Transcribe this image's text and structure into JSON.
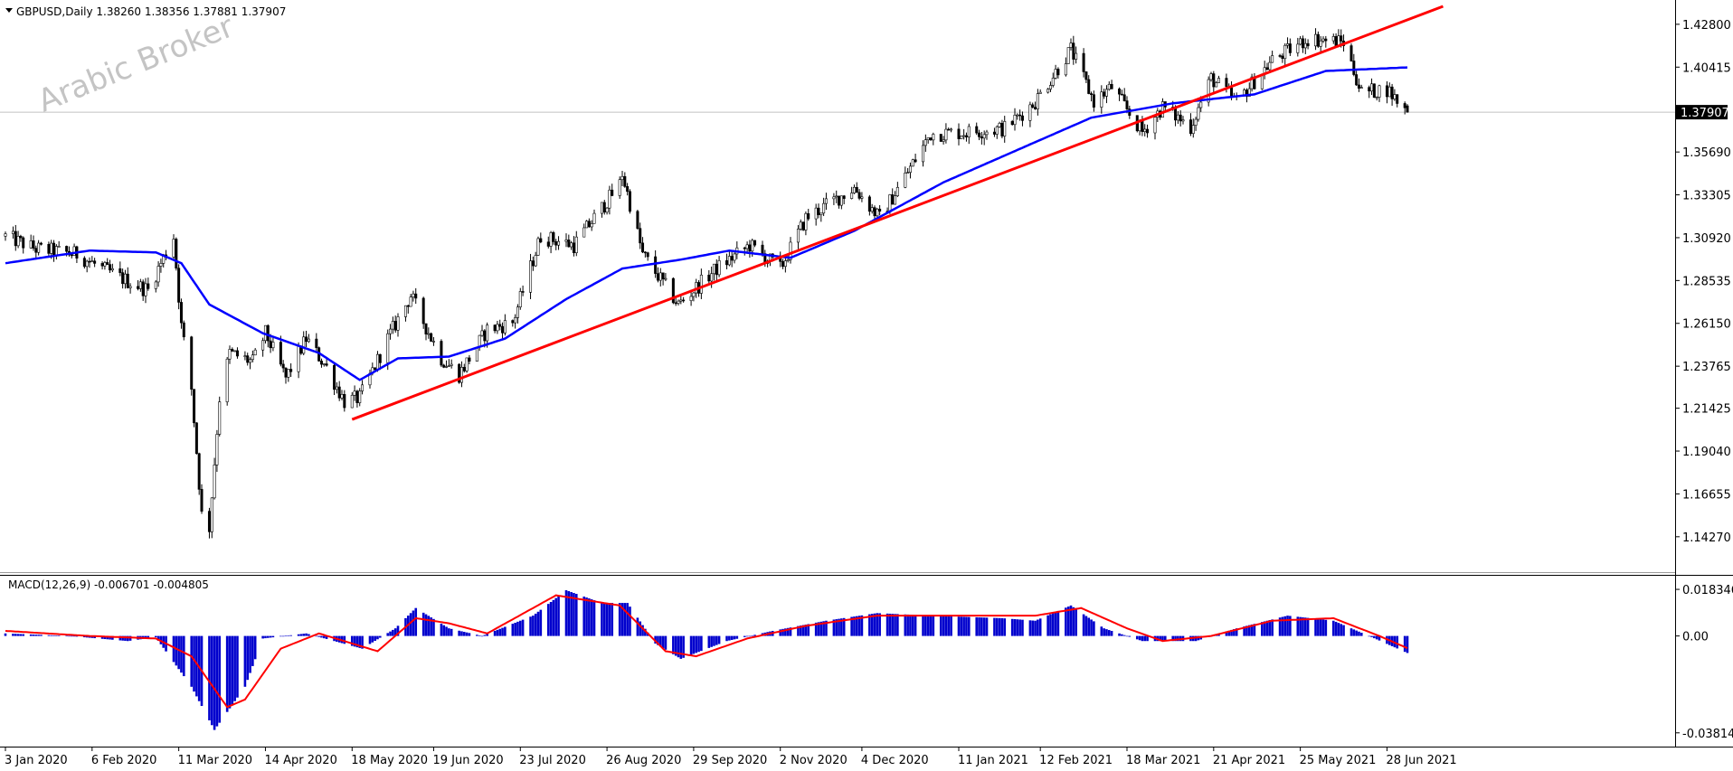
{
  "window": {
    "symbol": "GBPUSD",
    "timeframe": "Daily",
    "header_text": "GBPUSD,Daily  1.38260 1.38356 1.37881 1.37907",
    "watermark": "Arabic Broker"
  },
  "colors": {
    "background": "#ffffff",
    "candle": "#000000",
    "ma_line": "#0000ff",
    "trendline": "#ff0000",
    "macd_hist": "#0000cd",
    "macd_signal": "#ff0000",
    "bid_line": "#c0c0c0",
    "price_tag_bg": "#000000",
    "price_tag_text": "#ffffff"
  },
  "chart_data": [
    {
      "type": "candlestick",
      "title": "GBPUSD,Daily",
      "ohlc_last": {
        "open": 1.3826,
        "high": 1.38356,
        "low": 1.37881,
        "close": 1.37907
      },
      "current_price_label": "1.37907",
      "ylim": [
        1.125,
        1.438
      ],
      "y_ticks": [
        "1.42800",
        "1.40415",
        "1.37907",
        "1.35690",
        "1.33305",
        "1.30920",
        "1.28535",
        "1.26150",
        "1.23765",
        "1.21425",
        "1.19040",
        "1.16655",
        "1.14270"
      ],
      "x_ticks": [
        "3 Jan 2020",
        "6 Feb 2020",
        "11 Mar 2020",
        "14 Apr 2020",
        "18 May 2020",
        "19 Jun 2020",
        "23 Jul 2020",
        "26 Aug 2020",
        "29 Sep 2020",
        "2 Nov 2020",
        "4 Dec 2020",
        "11 Jan 2021",
        "12 Feb 2021",
        "18 Mar 2021",
        "21 Apr 2021",
        "25 May 2021",
        "28 Jun 2021"
      ],
      "price_anchors": [
        [
          "2020-01-03",
          1.31
        ],
        [
          "2020-01-15",
          1.303
        ],
        [
          "2020-01-31",
          1.3
        ],
        [
          "2020-02-10",
          1.292
        ],
        [
          "2020-02-20",
          1.285
        ],
        [
          "2020-02-28",
          1.28
        ],
        [
          "2020-03-09",
          1.31
        ],
        [
          "2020-03-12",
          1.26
        ],
        [
          "2020-03-16",
          1.225
        ],
        [
          "2020-03-20",
          1.155
        ],
        [
          "2020-03-23",
          1.148
        ],
        [
          "2020-03-27",
          1.22
        ],
        [
          "2020-03-31",
          1.245
        ],
        [
          "2020-04-09",
          1.24
        ],
        [
          "2020-04-14",
          1.256
        ],
        [
          "2020-04-22",
          1.231
        ],
        [
          "2020-04-30",
          1.253
        ],
        [
          "2020-05-08",
          1.237
        ],
        [
          "2020-05-15",
          1.218
        ],
        [
          "2020-05-21",
          1.22
        ],
        [
          "2020-06-01",
          1.253
        ],
        [
          "2020-06-10",
          1.277
        ],
        [
          "2020-06-22",
          1.242
        ],
        [
          "2020-06-29",
          1.233
        ],
        [
          "2020-07-10",
          1.258
        ],
        [
          "2020-07-20",
          1.262
        ],
        [
          "2020-07-31",
          1.31
        ],
        [
          "2020-08-13",
          1.305
        ],
        [
          "2020-08-31",
          1.339
        ],
        [
          "2020-09-01",
          1.345
        ],
        [
          "2020-09-09",
          1.3
        ],
        [
          "2020-09-23",
          1.272
        ],
        [
          "2020-10-08",
          1.292
        ],
        [
          "2020-10-21",
          1.305
        ],
        [
          "2020-11-02",
          1.292
        ],
        [
          "2020-11-12",
          1.32
        ],
        [
          "2020-12-01",
          1.337
        ],
        [
          "2020-12-11",
          1.32
        ],
        [
          "2020-12-31",
          1.367
        ],
        [
          "2021-01-15",
          1.368
        ],
        [
          "2021-01-29",
          1.37
        ],
        [
          "2021-02-10",
          1.385
        ],
        [
          "2021-02-24",
          1.414
        ],
        [
          "2021-03-05",
          1.385
        ],
        [
          "2021-03-12",
          1.393
        ],
        [
          "2021-03-24",
          1.368
        ],
        [
          "2021-04-01",
          1.382
        ],
        [
          "2021-04-12",
          1.371
        ],
        [
          "2021-04-20",
          1.398
        ],
        [
          "2021-04-30",
          1.385
        ],
        [
          "2021-05-14",
          1.408
        ],
        [
          "2021-05-28",
          1.42
        ],
        [
          "2021-06-11",
          1.418
        ],
        [
          "2021-06-18",
          1.39
        ],
        [
          "2021-06-28",
          1.392
        ],
        [
          "2021-07-06",
          1.379
        ]
      ],
      "ma_anchors": [
        [
          "2020-01-03",
          1.295
        ],
        [
          "2020-02-05",
          1.302
        ],
        [
          "2020-03-02",
          1.301
        ],
        [
          "2020-03-12",
          1.295
        ],
        [
          "2020-03-23",
          1.272
        ],
        [
          "2020-04-13",
          1.256
        ],
        [
          "2020-05-05",
          1.245
        ],
        [
          "2020-05-21",
          1.23
        ],
        [
          "2020-06-05",
          1.242
        ],
        [
          "2020-06-25",
          1.243
        ],
        [
          "2020-07-17",
          1.253
        ],
        [
          "2020-08-10",
          1.275
        ],
        [
          "2020-09-01",
          1.292
        ],
        [
          "2020-09-24",
          1.297
        ],
        [
          "2020-10-13",
          1.302
        ],
        [
          "2020-11-06",
          1.298
        ],
        [
          "2020-12-01",
          1.313
        ],
        [
          "2021-01-05",
          1.34
        ],
        [
          "2021-02-11",
          1.363
        ],
        [
          "2021-03-04",
          1.376
        ],
        [
          "2021-04-05",
          1.384
        ],
        [
          "2021-05-07",
          1.389
        ],
        [
          "2021-06-04",
          1.402
        ],
        [
          "2021-07-06",
          1.404
        ]
      ],
      "trendline": {
        "start": [
          "2020-05-18",
          1.208
        ],
        "end": [
          "2021-07-20",
          1.438
        ]
      },
      "grid": false
    },
    {
      "type": "bar",
      "title": "MACD(12,26,9) -0.006701 -0.004805",
      "series_names": [
        "MACD histogram",
        "Signal"
      ],
      "ylim": [
        -0.04,
        0.0205
      ],
      "y_ticks": [
        "0.018346",
        "0.00",
        "-0.038143"
      ],
      "macd_anchors": [
        [
          "2020-01-03",
          0.001
        ],
        [
          "2020-01-28",
          0.0
        ],
        [
          "2020-02-20",
          -0.002
        ],
        [
          "2020-03-02",
          -0.0005
        ],
        [
          "2020-03-16",
          -0.02
        ],
        [
          "2020-03-25",
          -0.037
        ],
        [
          "2020-04-06",
          -0.02
        ],
        [
          "2020-04-13",
          -0.001
        ],
        [
          "2020-04-30",
          0.001
        ],
        [
          "2020-05-22",
          -0.005
        ],
        [
          "2020-06-04",
          0.003
        ],
        [
          "2020-06-12",
          0.011
        ],
        [
          "2020-06-25",
          0.003
        ],
        [
          "2020-07-08",
          0.0
        ],
        [
          "2020-07-28",
          0.008
        ],
        [
          "2020-08-10",
          0.018
        ],
        [
          "2020-08-24",
          0.013
        ],
        [
          "2020-09-03",
          0.013
        ],
        [
          "2020-09-14",
          -0.003
        ],
        [
          "2020-09-24",
          -0.009
        ],
        [
          "2020-10-12",
          -0.002
        ],
        [
          "2020-10-30",
          0.002
        ],
        [
          "2020-11-20",
          0.006
        ],
        [
          "2020-12-10",
          0.009
        ],
        [
          "2020-12-31",
          0.008
        ],
        [
          "2021-01-28",
          0.007
        ],
        [
          "2021-02-10",
          0.006
        ],
        [
          "2021-02-24",
          0.012
        ],
        [
          "2021-03-09",
          0.003
        ],
        [
          "2021-03-24",
          -0.002
        ],
        [
          "2021-04-14",
          -0.002
        ],
        [
          "2021-04-30",
          0.003
        ],
        [
          "2021-05-20",
          0.008
        ],
        [
          "2021-06-07",
          0.006
        ],
        [
          "2021-06-21",
          0.0
        ],
        [
          "2021-07-06",
          -0.0067
        ]
      ],
      "signal_anchors": [
        [
          "2020-01-03",
          0.002
        ],
        [
          "2020-02-05",
          0.0
        ],
        [
          "2020-03-02",
          -0.001
        ],
        [
          "2020-03-16",
          -0.008
        ],
        [
          "2020-03-30",
          -0.028
        ],
        [
          "2020-04-06",
          -0.025
        ],
        [
          "2020-04-20",
          -0.005
        ],
        [
          "2020-05-05",
          0.001
        ],
        [
          "2020-05-28",
          -0.006
        ],
        [
          "2020-06-12",
          0.007
        ],
        [
          "2020-06-25",
          0.005
        ],
        [
          "2020-07-10",
          0.001
        ],
        [
          "2020-08-06",
          0.016
        ],
        [
          "2020-08-31",
          0.012
        ],
        [
          "2020-09-18",
          -0.006
        ],
        [
          "2020-09-30",
          -0.008
        ],
        [
          "2020-10-20",
          -0.001
        ],
        [
          "2020-11-12",
          0.004
        ],
        [
          "2020-12-10",
          0.008
        ],
        [
          "2021-01-15",
          0.008
        ],
        [
          "2021-02-10",
          0.008
        ],
        [
          "2021-02-28",
          0.011
        ],
        [
          "2021-03-18",
          0.003
        ],
        [
          "2021-04-01",
          -0.002
        ],
        [
          "2021-04-20",
          0.0
        ],
        [
          "2021-05-14",
          0.006
        ],
        [
          "2021-06-07",
          0.007
        ],
        [
          "2021-06-25",
          0.0
        ],
        [
          "2021-07-06",
          -0.0048
        ]
      ]
    }
  ]
}
